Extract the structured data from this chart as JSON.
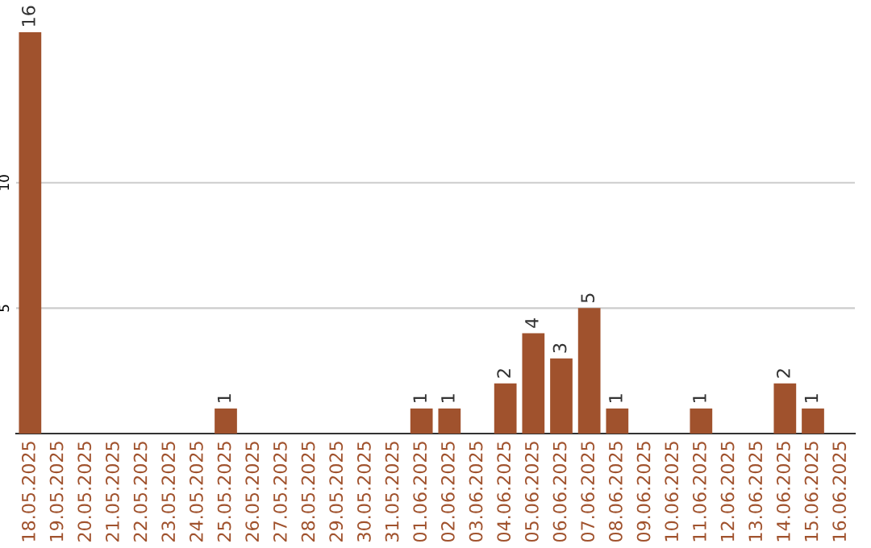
{
  "chart_data": {
    "type": "bar",
    "categories": [
      "18.05.2025",
      "19.05.2025",
      "20.05.2025",
      "21.05.2025",
      "22.05.2025",
      "23.05.2025",
      "24.05.2025",
      "25.05.2025",
      "26.05.2025",
      "27.05.2025",
      "28.05.2025",
      "29.05.2025",
      "30.05.2025",
      "31.05.2025",
      "01.06.2025",
      "02.06.2025",
      "03.06.2025",
      "04.06.2025",
      "05.06.2025",
      "06.06.2025",
      "07.06.2025",
      "08.06.2025",
      "09.06.2025",
      "10.06.2025",
      "11.06.2025",
      "12.06.2025",
      "13.06.2025",
      "14.06.2025",
      "15.06.2025",
      "16.06.2025"
    ],
    "values": [
      16,
      0,
      0,
      0,
      0,
      0,
      0,
      1,
      0,
      0,
      0,
      0,
      0,
      0,
      1,
      1,
      0,
      2,
      4,
      3,
      5,
      1,
      0,
      0,
      1,
      0,
      0,
      2,
      1,
      0
    ],
    "value_labels": [
      "16",
      null,
      null,
      null,
      null,
      null,
      null,
      "1",
      null,
      null,
      null,
      null,
      null,
      null,
      "1",
      "1",
      null,
      "2",
      "4",
      "3",
      "5",
      "1",
      null,
      null,
      "1",
      null,
      null,
      "2",
      "1",
      null
    ],
    "color": "#a0522d",
    "ylim": [
      0,
      16
    ],
    "yticks": [
      5,
      10
    ],
    "grid": "y"
  }
}
